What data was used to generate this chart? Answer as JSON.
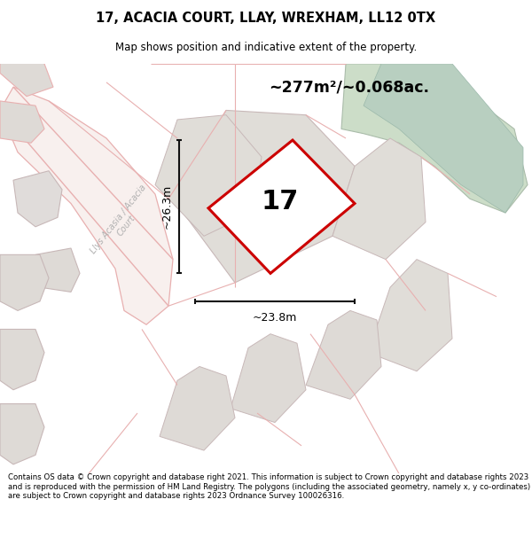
{
  "title": "17, ACACIA COURT, LLAY, WREXHAM, LL12 0TX",
  "subtitle": "Map shows position and indicative extent of the property.",
  "footer": "Contains OS data © Crown copyright and database right 2021. This information is subject to Crown copyright and database rights 2023 and is reproduced with the permission of HM Land Registry. The polygons (including the associated geometry, namely x, y co-ordinates) are subject to Crown copyright and database rights 2023 Ordnance Survey 100026316.",
  "area_label": "~277m²/~0.068ac.",
  "width_label": "~23.8m",
  "height_label": "~26.3m",
  "property_number": "17",
  "map_bg": "#f2eeea",
  "subject_fill": "#e0ddd8",
  "subject_outline": "#cc0000",
  "plot_fill": "#e0ddd8",
  "plot_edge": "#c8b8b8",
  "pink_edge": "#e8b0b0",
  "pink_fill": "#f8f0ee",
  "green_fill": "#ccddc8",
  "green_edge": "#aabcaa",
  "dim_color": "#111111",
  "text_gray": "#aaaaaa",
  "title_fontsize": 10.5,
  "subtitle_fontsize": 8.5,
  "footer_fontsize": 6.2
}
